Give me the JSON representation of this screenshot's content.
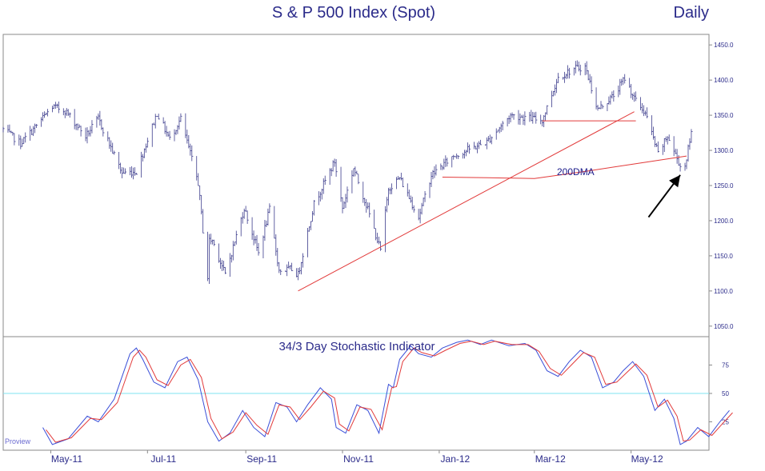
{
  "chart_data": [
    {
      "type": "ohlc",
      "title": "S & P 500 Index  (Spot)",
      "frequency_label": "Daily",
      "ylim": [
        1035,
        1465
      ],
      "yticks": [
        "1450.0",
        "1400.0",
        "1350.0",
        "1300.0",
        "1250.0",
        "1200.0",
        "1150.0",
        "1100.0",
        "1050.0"
      ],
      "ytick_values": [
        1450,
        1400,
        1350,
        1300,
        1250,
        1200,
        1150,
        1100,
        1050
      ],
      "xticks": [
        "May-11",
        "Jul-11",
        "Sep-11",
        "Nov-11",
        "Jan-12",
        "Mar-12",
        "May-12"
      ],
      "xtick_dates": [
        "2011-05-01",
        "2011-07-01",
        "2011-09-01",
        "2011-11-01",
        "2012-01-01",
        "2012-03-01",
        "2012-05-01"
      ],
      "xlim": [
        "2011-04-01",
        "2012-06-05"
      ],
      "price_path": [
        [
          "2011-04-01",
          1330
        ],
        [
          "2011-04-12",
          1310
        ],
        [
          "2011-04-20",
          1330
        ],
        [
          "2011-05-02",
          1362
        ],
        [
          "2011-05-10",
          1357
        ],
        [
          "2011-05-23",
          1320
        ],
        [
          "2011-05-31",
          1345
        ],
        [
          "2011-06-15",
          1268
        ],
        [
          "2011-06-24",
          1270
        ],
        [
          "2011-07-07",
          1353
        ],
        [
          "2011-07-15",
          1316
        ],
        [
          "2011-07-22",
          1345
        ],
        [
          "2011-08-02",
          1254
        ],
        [
          "2011-08-08",
          1119
        ],
        [
          "2011-08-09",
          1172
        ],
        [
          "2011-08-11",
          1172
        ],
        [
          "2011-08-19",
          1123
        ],
        [
          "2011-08-31",
          1218
        ],
        [
          "2011-09-09",
          1154
        ],
        [
          "2011-09-16",
          1216
        ],
        [
          "2011-09-22",
          1129
        ],
        [
          "2011-09-30",
          1131
        ],
        [
          "2011-10-04",
          1123
        ],
        [
          "2011-10-14",
          1224
        ],
        [
          "2011-10-27",
          1284
        ],
        [
          "2011-11-01",
          1218
        ],
        [
          "2011-11-08",
          1275
        ],
        [
          "2011-11-17",
          1216
        ],
        [
          "2011-11-25",
          1158
        ],
        [
          "2011-11-30",
          1246
        ],
        [
          "2011-12-07",
          1261
        ],
        [
          "2011-12-19",
          1205
        ],
        [
          "2011-12-27",
          1265
        ],
        [
          "2012-01-10",
          1292
        ],
        [
          "2012-01-31",
          1312
        ],
        [
          "2012-02-15",
          1350
        ],
        [
          "2012-03-06",
          1343
        ],
        [
          "2012-03-16",
          1404
        ],
        [
          "2012-03-26",
          1416
        ],
        [
          "2012-04-02",
          1419
        ],
        [
          "2012-04-10",
          1358
        ],
        [
          "2012-04-20",
          1378
        ],
        [
          "2012-04-27",
          1403
        ],
        [
          "2012-05-04",
          1370
        ],
        [
          "2012-05-10",
          1353
        ],
        [
          "2012-05-18",
          1295
        ],
        [
          "2012-05-24",
          1320
        ],
        [
          "2012-06-01",
          1278
        ],
        [
          "2012-06-04",
          1278
        ],
        [
          "2012-06-08",
          1325
        ]
      ],
      "trendlines": [
        {
          "from": [
            "2011-10-04",
            1100
          ],
          "to": [
            "2012-05-03",
            1355
          ],
          "color": "#e23a3a"
        },
        {
          "from": [
            "2012-03-06",
            1342
          ],
          "to": [
            "2012-05-04",
            1342
          ],
          "color": "#e23a3a"
        }
      ],
      "moving_average": {
        "label": "200DMA",
        "color": "#e23a3a",
        "points": [
          [
            "2012-01-03",
            1262
          ],
          [
            "2012-02-01",
            1261
          ],
          [
            "2012-03-01",
            1260
          ],
          [
            "2012-04-02",
            1270
          ],
          [
            "2012-05-01",
            1280
          ],
          [
            "2012-06-05",
            1292
          ]
        ]
      },
      "annotation_arrow": {
        "from": [
          "2012-05-12",
          1205
        ],
        "to": [
          "2012-06-01",
          1265
        ],
        "color": "#000000"
      }
    },
    {
      "type": "line",
      "title": "34/3 Day Stochastic Indicator",
      "ylim": [
        0,
        100
      ],
      "yticks": [
        "75",
        "50",
        "25"
      ],
      "ytick_values": [
        75,
        50,
        25
      ],
      "reference_line": {
        "value": 50,
        "color": "#7fe3f0"
      },
      "series": [
        {
          "color": "#3a4fd8",
          "points": [
            [
              "2011-04-26",
              20
            ],
            [
              "2011-05-02",
              5
            ],
            [
              "2011-05-12",
              10
            ],
            [
              "2011-05-24",
              30
            ],
            [
              "2011-05-31",
              25
            ],
            [
              "2011-06-10",
              45
            ],
            [
              "2011-06-20",
              85
            ],
            [
              "2011-06-24",
              90
            ],
            [
              "2011-06-28",
              80
            ],
            [
              "2011-07-05",
              60
            ],
            [
              "2011-07-12",
              55
            ],
            [
              "2011-07-20",
              78
            ],
            [
              "2011-07-26",
              82
            ],
            [
              "2011-08-02",
              62
            ],
            [
              "2011-08-08",
              25
            ],
            [
              "2011-08-15",
              8
            ],
            [
              "2011-08-22",
              15
            ],
            [
              "2011-08-30",
              35
            ],
            [
              "2011-09-06",
              20
            ],
            [
              "2011-09-13",
              12
            ],
            [
              "2011-09-20",
              42
            ],
            [
              "2011-09-27",
              38
            ],
            [
              "2011-10-03",
              25
            ],
            [
              "2011-10-10",
              40
            ],
            [
              "2011-10-18",
              55
            ],
            [
              "2011-10-25",
              45
            ],
            [
              "2011-10-28",
              20
            ],
            [
              "2011-11-03",
              15
            ],
            [
              "2011-11-10",
              40
            ],
            [
              "2011-11-17",
              35
            ],
            [
              "2011-11-24",
              15
            ],
            [
              "2011-11-30",
              58
            ],
            [
              "2011-12-03",
              55
            ],
            [
              "2011-12-07",
              80
            ],
            [
              "2011-12-14",
              92
            ],
            [
              "2011-12-19",
              85
            ],
            [
              "2011-12-27",
              82
            ],
            [
              "2012-01-03",
              90
            ],
            [
              "2012-01-12",
              95
            ],
            [
              "2012-01-19",
              97
            ],
            [
              "2012-01-27",
              93
            ],
            [
              "2012-02-03",
              97
            ],
            [
              "2012-02-14",
              92
            ],
            [
              "2012-02-24",
              94
            ],
            [
              "2012-03-02",
              88
            ],
            [
              "2012-03-09",
              70
            ],
            [
              "2012-03-16",
              65
            ],
            [
              "2012-03-23",
              78
            ],
            [
              "2012-03-30",
              88
            ],
            [
              "2012-04-06",
              82
            ],
            [
              "2012-04-13",
              55
            ],
            [
              "2012-04-20",
              60
            ],
            [
              "2012-04-26",
              70
            ],
            [
              "2012-05-02",
              78
            ],
            [
              "2012-05-09",
              65
            ],
            [
              "2012-05-16",
              35
            ],
            [
              "2012-05-22",
              45
            ],
            [
              "2012-05-28",
              28
            ],
            [
              "2012-06-01",
              5
            ],
            [
              "2012-06-05",
              8
            ],
            [
              "2012-06-12",
              20
            ],
            [
              "2012-06-19",
              12
            ],
            [
              "2012-06-26",
              25
            ],
            [
              "2012-07-02",
              35
            ]
          ]
        },
        {
          "color": "#e23a3a",
          "points": [
            [
              "2011-04-28",
              18
            ],
            [
              "2011-05-04",
              7
            ],
            [
              "2011-05-14",
              11
            ],
            [
              "2011-05-26",
              28
            ],
            [
              "2011-06-02",
              27
            ],
            [
              "2011-06-12",
              42
            ],
            [
              "2011-06-22",
              82
            ],
            [
              "2011-06-26",
              88
            ],
            [
              "2011-06-30",
              82
            ],
            [
              "2011-07-07",
              62
            ],
            [
              "2011-07-14",
              57
            ],
            [
              "2011-07-22",
              75
            ],
            [
              "2011-07-28",
              80
            ],
            [
              "2011-08-04",
              64
            ],
            [
              "2011-08-10",
              28
            ],
            [
              "2011-08-17",
              10
            ],
            [
              "2011-08-24",
              16
            ],
            [
              "2011-09-01",
              33
            ],
            [
              "2011-09-08",
              22
            ],
            [
              "2011-09-15",
              14
            ],
            [
              "2011-09-22",
              40
            ],
            [
              "2011-09-29",
              38
            ],
            [
              "2011-10-05",
              27
            ],
            [
              "2011-10-12",
              38
            ],
            [
              "2011-10-20",
              52
            ],
            [
              "2011-10-27",
              46
            ],
            [
              "2011-10-30",
              23
            ],
            [
              "2011-11-05",
              17
            ],
            [
              "2011-11-12",
              38
            ],
            [
              "2011-11-19",
              36
            ],
            [
              "2011-11-26",
              18
            ],
            [
              "2011-12-02",
              55
            ],
            [
              "2011-12-05",
              56
            ],
            [
              "2011-12-09",
              78
            ],
            [
              "2011-12-16",
              90
            ],
            [
              "2011-12-21",
              86
            ],
            [
              "2011-12-29",
              83
            ],
            [
              "2012-01-05",
              88
            ],
            [
              "2012-01-14",
              94
            ],
            [
              "2012-01-21",
              96
            ],
            [
              "2012-01-29",
              93
            ],
            [
              "2012-02-05",
              96
            ],
            [
              "2012-02-16",
              93
            ],
            [
              "2012-02-26",
              93
            ],
            [
              "2012-03-04",
              87
            ],
            [
              "2012-03-11",
              72
            ],
            [
              "2012-03-18",
              66
            ],
            [
              "2012-03-25",
              76
            ],
            [
              "2012-04-01",
              86
            ],
            [
              "2012-04-08",
              82
            ],
            [
              "2012-04-15",
              58
            ],
            [
              "2012-04-22",
              60
            ],
            [
              "2012-04-28",
              68
            ],
            [
              "2012-05-04",
              76
            ],
            [
              "2012-05-11",
              66
            ],
            [
              "2012-05-18",
              38
            ],
            [
              "2012-05-24",
              44
            ],
            [
              "2012-05-30",
              30
            ],
            [
              "2012-06-03",
              8
            ],
            [
              "2012-06-07",
              9
            ],
            [
              "2012-06-14",
              18
            ],
            [
              "2012-06-21",
              13
            ],
            [
              "2012-06-28",
              24
            ],
            [
              "2012-07-04",
              33
            ]
          ]
        }
      ]
    }
  ],
  "watermark": "Proview"
}
